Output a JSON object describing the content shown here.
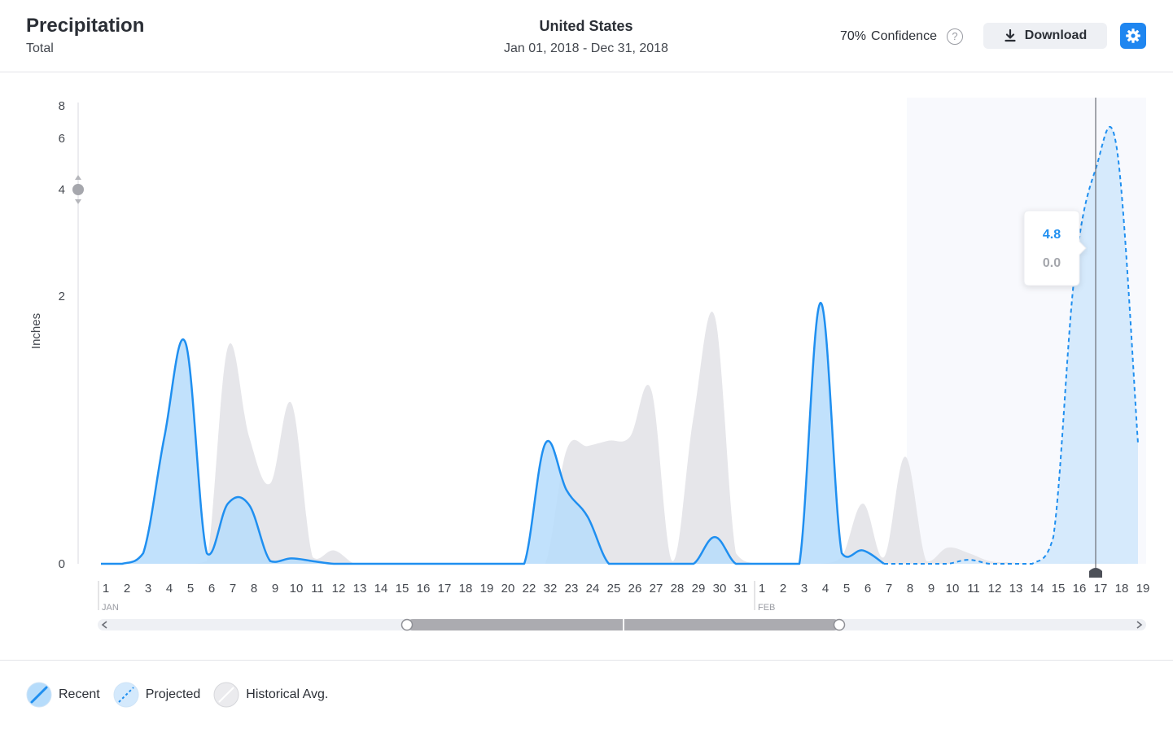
{
  "header": {
    "title": "Precipitation",
    "subtitle": "Total",
    "region": "United States",
    "date_range": "Jan 01, 2018 - Dec 31, 2018",
    "confidence_value": "70%",
    "confidence_label": "Confidence",
    "download_label": "Download"
  },
  "tooltip": {
    "primary": "4.8",
    "secondary": "0.0"
  },
  "legend": [
    {
      "label": "Recent",
      "icon": "recent-swatch-icon"
    },
    {
      "label": "Projected",
      "icon": "projected-swatch-icon"
    },
    {
      "label": "Historical Avg.",
      "icon": "historical-swatch-icon"
    }
  ],
  "colors": {
    "recent": "#1f8ff0",
    "recent_fill": "#b6dcfb",
    "projected_fill": "#d4e9fc",
    "historical": "#e6e6ea",
    "accent": "#1f86f0",
    "forecast_bg": "#f8f9fd"
  },
  "chart_data": {
    "type": "area",
    "ylabel": "Inches",
    "yticks": [
      "0",
      "2",
      "4",
      "6",
      "8"
    ],
    "y_slider_value": "4",
    "categories": [
      "1",
      "2",
      "3",
      "4",
      "5",
      "6",
      "7",
      "8",
      "9",
      "10",
      "11",
      "12",
      "13",
      "14",
      "15",
      "16",
      "17",
      "18",
      "19",
      "20",
      "22",
      "32",
      "23",
      "24",
      "25",
      "26",
      "27",
      "28",
      "29",
      "30",
      "31",
      "1",
      "2",
      "3",
      "4",
      "5",
      "6",
      "7",
      "8",
      "9",
      "10",
      "11",
      "12",
      "13",
      "14",
      "15",
      "16",
      "17",
      "18",
      "19"
    ],
    "month_labels": [
      {
        "label": "JAN",
        "index": 0
      },
      {
        "label": "FEB",
        "index": 31
      }
    ],
    "series": [
      {
        "name": "Recent",
        "values": [
          0,
          0,
          0.08,
          0.95,
          1.65,
          0.08,
          0.45,
          0.44,
          0.02,
          0.04,
          0.02,
          0,
          0,
          0,
          0,
          0,
          0,
          0,
          0,
          0,
          0,
          0.9,
          0.55,
          0.35,
          0,
          0,
          0,
          0,
          0,
          0.2,
          0,
          0,
          0,
          0,
          1.95,
          0.08,
          0.1,
          0,
          null,
          null,
          null,
          null,
          null,
          null,
          null,
          null,
          null,
          null,
          null,
          null
        ]
      },
      {
        "name": "Projected",
        "values": [
          null,
          null,
          null,
          null,
          null,
          null,
          null,
          null,
          null,
          null,
          null,
          null,
          null,
          null,
          null,
          null,
          null,
          null,
          null,
          null,
          null,
          null,
          null,
          null,
          null,
          null,
          null,
          null,
          null,
          null,
          null,
          null,
          null,
          null,
          null,
          null,
          null,
          0,
          0,
          0,
          0,
          0.03,
          0,
          0,
          0,
          0.2,
          2.4,
          4.8,
          5.6,
          0.9
        ]
      },
      {
        "name": "Historical Avg.",
        "values": [
          0,
          0,
          0,
          0,
          0,
          0.02,
          1.62,
          0.95,
          0.6,
          1.2,
          0.05,
          0.1,
          0,
          0,
          0,
          0,
          0,
          0,
          0,
          0,
          0,
          0,
          0.85,
          0.88,
          0.92,
          0.95,
          1.3,
          0.02,
          1.1,
          1.85,
          0.08,
          0,
          0,
          0,
          0,
          0.05,
          0.45,
          0.05,
          0.8,
          0.02,
          0.12,
          0.08,
          0.02,
          0.01,
          0,
          0,
          0.02,
          0.02,
          0.01,
          0
        ]
      }
    ],
    "selected_index": 47,
    "forecast_start_index": 38,
    "grid": false,
    "legend_position": "bottom-left"
  }
}
